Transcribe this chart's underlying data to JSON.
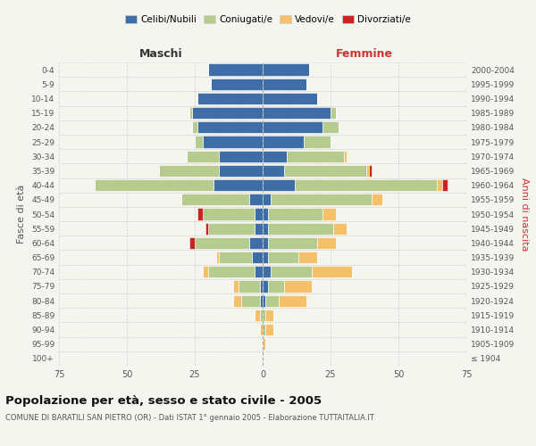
{
  "age_groups": [
    "100+",
    "95-99",
    "90-94",
    "85-89",
    "80-84",
    "75-79",
    "70-74",
    "65-69",
    "60-64",
    "55-59",
    "50-54",
    "45-49",
    "40-44",
    "35-39",
    "30-34",
    "25-29",
    "20-24",
    "15-19",
    "10-14",
    "5-9",
    "0-4"
  ],
  "birth_years": [
    "≤ 1904",
    "1905-1909",
    "1910-1914",
    "1915-1919",
    "1920-1924",
    "1925-1929",
    "1930-1934",
    "1935-1939",
    "1940-1944",
    "1945-1949",
    "1950-1954",
    "1955-1959",
    "1960-1964",
    "1965-1969",
    "1970-1974",
    "1975-1979",
    "1980-1984",
    "1985-1989",
    "1990-1994",
    "1995-1999",
    "2000-2004"
  ],
  "colors": {
    "celibi": "#3d6ea8",
    "coniugati": "#b5cc8e",
    "vedovi": "#f5c06a",
    "divorziati": "#cc2222"
  },
  "maschi": {
    "celibi": [
      0,
      0,
      0,
      0,
      1,
      1,
      3,
      4,
      5,
      3,
      3,
      5,
      18,
      16,
      16,
      22,
      24,
      26,
      24,
      19,
      20
    ],
    "coniugati": [
      0,
      0,
      0,
      1,
      7,
      8,
      17,
      12,
      20,
      17,
      19,
      25,
      44,
      22,
      12,
      3,
      2,
      1,
      0,
      0,
      0
    ],
    "vedovi": [
      0,
      0,
      1,
      2,
      3,
      2,
      2,
      1,
      0,
      0,
      0,
      0,
      0,
      0,
      0,
      0,
      0,
      0,
      0,
      0,
      0
    ],
    "divorziati": [
      0,
      0,
      0,
      0,
      0,
      0,
      0,
      0,
      2,
      1,
      2,
      0,
      0,
      0,
      0,
      0,
      0,
      0,
      0,
      0,
      0
    ]
  },
  "femmine": {
    "celibi": [
      0,
      0,
      0,
      0,
      1,
      2,
      3,
      2,
      2,
      2,
      2,
      3,
      12,
      8,
      9,
      15,
      22,
      25,
      20,
      16,
      17
    ],
    "coniugati": [
      0,
      0,
      1,
      1,
      5,
      6,
      15,
      11,
      18,
      24,
      20,
      37,
      52,
      30,
      21,
      10,
      6,
      2,
      0,
      0,
      0
    ],
    "vedovi": [
      0,
      1,
      3,
      3,
      10,
      10,
      15,
      7,
      7,
      5,
      5,
      4,
      2,
      1,
      1,
      0,
      0,
      0,
      0,
      0,
      0
    ],
    "divorziati": [
      0,
      0,
      0,
      0,
      0,
      0,
      0,
      0,
      0,
      0,
      0,
      0,
      2,
      1,
      0,
      0,
      0,
      0,
      0,
      0,
      0
    ]
  },
  "xlim": 75,
  "title": "Popolazione per età, sesso e stato civile - 2005",
  "subtitle": "COMUNE DI BARATILI SAN PIETRO (OR) - Dati ISTAT 1° gennaio 2005 - Elaborazione TUTTAITALIA.IT",
  "ylabel_left": "Fasce di età",
  "ylabel_right": "Anni di nascita",
  "xlabel_maschi": "Maschi",
  "xlabel_femmine": "Femmine",
  "legend_labels": [
    "Celibi/Nubili",
    "Coniugati/e",
    "Vedovi/e",
    "Divorziati/e"
  ],
  "bg_color": "#f5f5f0",
  "bar_edge_color": "white",
  "grid_color": "#cccccc"
}
